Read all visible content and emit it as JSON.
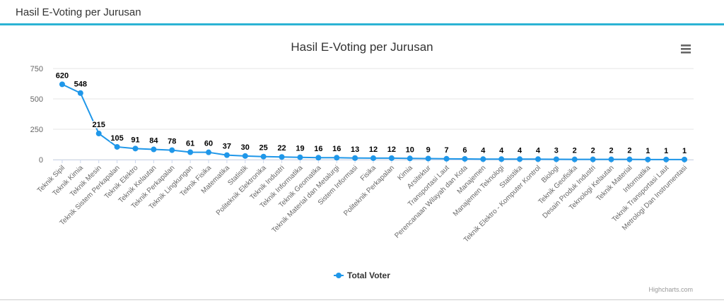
{
  "panel": {
    "title": "Hasil E-Voting per Jurusan"
  },
  "chart_menu": {
    "icon": "hamburger-menu-icon"
  },
  "credits": "Highcharts.com",
  "colors": {
    "series": "#1f97e9",
    "header_rule": "#2bb3d4",
    "grid": "#e6e6e6"
  },
  "chart_data": {
    "type": "line",
    "title": "Hasil E-Voting per Jurusan",
    "xlabel": "",
    "ylabel": "",
    "ylim": [
      0,
      750
    ],
    "yticks": [
      0,
      250,
      500,
      750
    ],
    "grid": true,
    "legend_position": "bottom-center",
    "categories": [
      "Teknik Sipil",
      "Teknik Kimia",
      "Teknik Mesin",
      "Teknik Sistem Perkapalan",
      "Teknik Elektro",
      "Teknik Kelautan",
      "Teknik Perkapalan",
      "Teknik Lingkungan",
      "Teknik Fisika",
      "Matematika",
      "Statistik",
      "Politeknik Elektronika",
      "Teknik Industri",
      "Teknik Informatika",
      "Teknik Geomatika",
      "Teknik Material dan Metalurgi",
      "Sistem Informasi",
      "Fisika",
      "Politeknik Perkapalan",
      "Kimia",
      "Arsitektur",
      "Transportasi Laut",
      "Perencanaan Wilayah dan Kota",
      "Manajemen",
      "Manajemen Teknologi",
      "Statistika",
      "Teknik Elektro - Komputer Kontrol",
      "Biologi",
      "Teknik Geofisika",
      "Desain Produk Industri",
      "Teknologi Kelautan",
      "Teknik Material",
      "Informatika",
      "Teknik Transportasi Laut",
      "Metrologi Dan Instrumentasi"
    ],
    "series": [
      {
        "name": "Total Voter",
        "values": [
          620,
          548,
          215,
          105,
          91,
          84,
          78,
          61,
          60,
          37,
          30,
          25,
          22,
          19,
          16,
          16,
          13,
          12,
          12,
          10,
          9,
          7,
          6,
          4,
          4,
          4,
          4,
          3,
          2,
          2,
          2,
          2,
          1,
          1,
          1
        ]
      }
    ]
  }
}
